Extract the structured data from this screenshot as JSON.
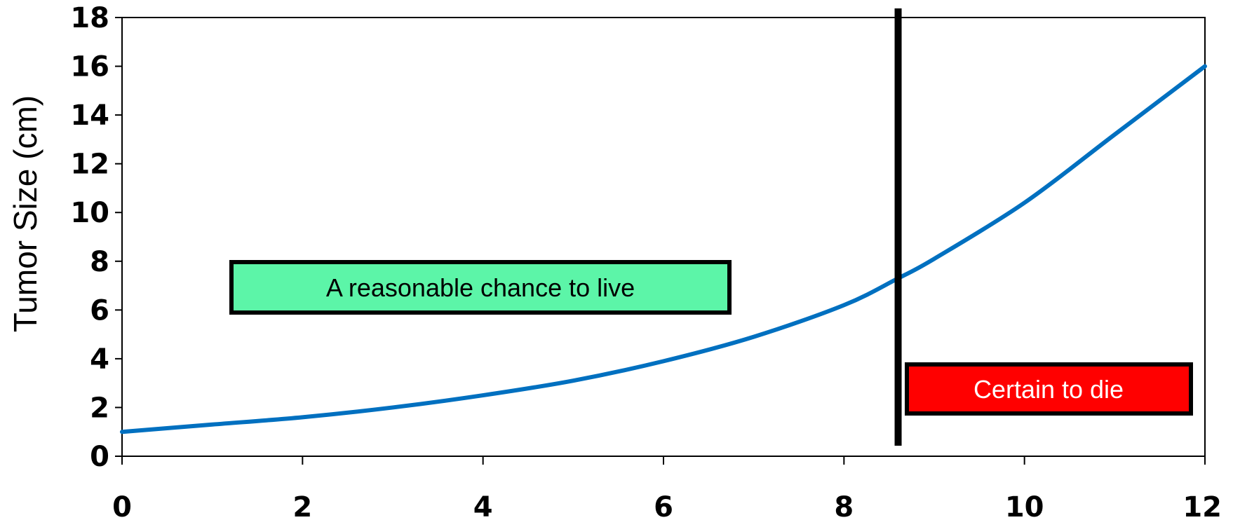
{
  "chart_data": {
    "type": "line",
    "title": "",
    "xlabel": "",
    "ylabel": "Tumor Size (cm)",
    "xlim": [
      0,
      12
    ],
    "ylim": [
      0,
      18
    ],
    "x_ticks": [
      "0",
      "2",
      "4",
      "6",
      "8",
      "10",
      "12"
    ],
    "y_ticks": [
      "0",
      "2",
      "4",
      "6",
      "8",
      "10",
      "12",
      "14",
      "16",
      "18"
    ],
    "grid": false,
    "series": [
      {
        "color": "#0070c0",
        "x": [
          0,
          1,
          2,
          3,
          4,
          5,
          6,
          7,
          8,
          8.6,
          9,
          10,
          11,
          12
        ],
        "values": [
          1.0,
          1.3,
          1.6,
          2.0,
          2.5,
          3.1,
          3.9,
          4.9,
          6.2,
          7.3,
          8.1,
          10.4,
          13.2,
          16.0
        ]
      }
    ],
    "threshold_line": {
      "x": 8.6,
      "color": "#000000"
    },
    "annotations": [
      {
        "text": "A reasonable chance to live",
        "fill": "#5cf5a8",
        "text_color": "#000000"
      },
      {
        "text": "Certain to die",
        "fill": "#ff0000",
        "text_color": "#ffffff"
      }
    ]
  }
}
